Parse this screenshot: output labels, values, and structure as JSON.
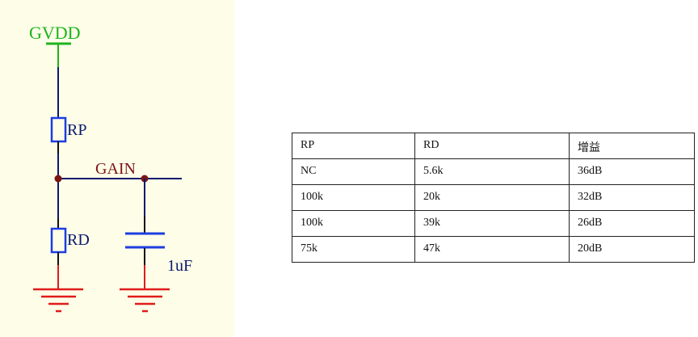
{
  "schematic": {
    "power_net": "GVDD",
    "resistor_top": "RP",
    "resistor_bottom": "RD",
    "net_label": "GAIN",
    "capacitor_value": "1uF",
    "colors": {
      "background": "#fdfde8",
      "power": "#1fb31f",
      "wire": "#0a1a6e",
      "component": "#1d3de0",
      "ground": "#e01b1b",
      "net_label": "#7a1515",
      "text": "#0a1a6e"
    }
  },
  "table": {
    "headers": [
      "RP",
      "RD",
      "增益"
    ],
    "rows": [
      [
        "NC",
        "5.6k",
        "36dB"
      ],
      [
        "100k",
        "20k",
        "32dB"
      ],
      [
        "100k",
        "39k",
        "26dB"
      ],
      [
        "75k",
        "47k",
        "20dB"
      ]
    ]
  }
}
